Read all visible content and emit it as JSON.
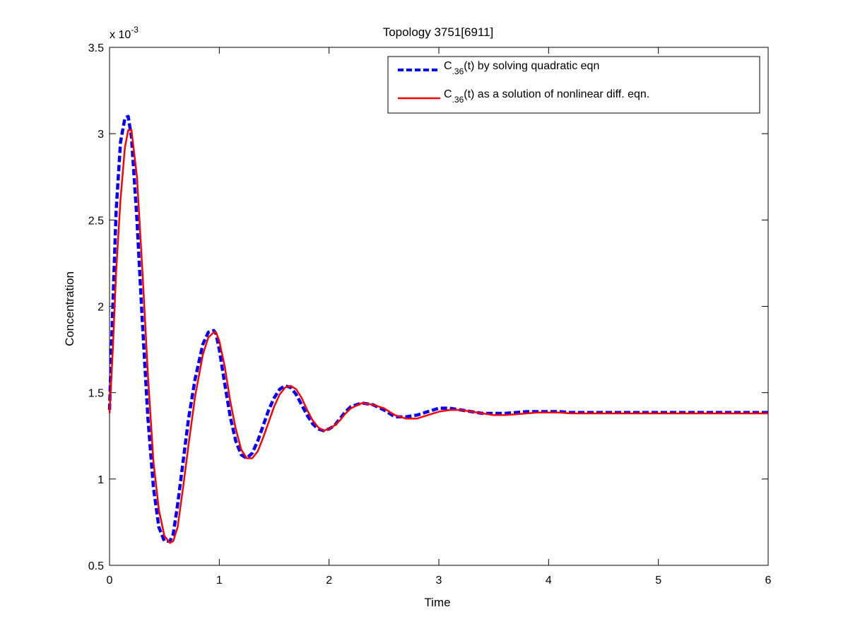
{
  "chart_data": {
    "type": "line",
    "title": "Topology 3751[6911]",
    "xlabel": "Time",
    "ylabel": "Concentration",
    "exponent_label": {
      "base": "x 10",
      "power": "-3"
    },
    "xlim": [
      0,
      6
    ],
    "ylim": [
      0.5,
      3.5
    ],
    "xticks": [
      0,
      1,
      2,
      3,
      4,
      5,
      6
    ],
    "yticks": [
      0.5,
      1,
      1.5,
      2,
      2.5,
      3,
      3.5
    ],
    "xtick_labels": [
      "0",
      "1",
      "2",
      "3",
      "4",
      "5",
      "6"
    ],
    "ytick_labels": [
      "0.5",
      "1",
      "1.5",
      "2",
      "2.5",
      "3",
      "3.5"
    ],
    "grid": false,
    "legend_position": "top-right",
    "series": [
      {
        "name_main": "C",
        "name_sub": ".36",
        "name_rest": "(t) by solving quadratic eqn",
        "color": "#0000ff",
        "style": "dashed",
        "x": [
          0,
          0.03,
          0.06,
          0.1,
          0.14,
          0.17,
          0.2,
          0.25,
          0.3,
          0.35,
          0.4,
          0.45,
          0.5,
          0.55,
          0.58,
          0.62,
          0.67,
          0.72,
          0.78,
          0.85,
          0.9,
          0.95,
          0.97,
          1.0,
          1.05,
          1.1,
          1.15,
          1.2,
          1.25,
          1.3,
          1.35,
          1.4,
          1.45,
          1.5,
          1.55,
          1.6,
          1.65,
          1.7,
          1.75,
          1.8,
          1.85,
          1.9,
          1.95,
          2.0,
          2.05,
          2.1,
          2.15,
          2.2,
          2.3,
          2.4,
          2.5,
          2.55,
          2.6,
          2.7,
          2.8,
          2.9,
          3.0,
          3.1,
          3.2,
          3.3,
          3.4,
          3.5,
          3.6,
          3.7,
          3.8,
          3.9,
          4.0,
          4.1,
          4.2,
          4.4,
          4.6,
          4.8,
          5.0,
          5.2,
          5.4,
          5.6,
          5.8,
          6.0
        ],
        "y": [
          1.4,
          2.0,
          2.55,
          2.95,
          3.09,
          3.1,
          2.98,
          2.5,
          1.9,
          1.35,
          0.95,
          0.72,
          0.64,
          0.64,
          0.68,
          0.85,
          1.1,
          1.35,
          1.58,
          1.78,
          1.85,
          1.86,
          1.84,
          1.75,
          1.55,
          1.36,
          1.22,
          1.14,
          1.12,
          1.15,
          1.22,
          1.31,
          1.4,
          1.47,
          1.52,
          1.54,
          1.53,
          1.49,
          1.43,
          1.37,
          1.32,
          1.29,
          1.28,
          1.29,
          1.31,
          1.35,
          1.39,
          1.42,
          1.44,
          1.43,
          1.4,
          1.38,
          1.36,
          1.36,
          1.37,
          1.39,
          1.41,
          1.41,
          1.4,
          1.39,
          1.38,
          1.38,
          1.38,
          1.385,
          1.39,
          1.39,
          1.39,
          1.39,
          1.385,
          1.385,
          1.385,
          1.385,
          1.385,
          1.385,
          1.385,
          1.385,
          1.385,
          1.385
        ]
      },
      {
        "name_main": "C",
        "name_sub": ".36",
        "name_rest": "(t) as a solution of nonlinear diff. eqn.",
        "color": "#ff0000",
        "style": "solid",
        "x": [
          0,
          0.03,
          0.06,
          0.1,
          0.14,
          0.17,
          0.2,
          0.25,
          0.3,
          0.35,
          0.4,
          0.45,
          0.5,
          0.55,
          0.58,
          0.62,
          0.67,
          0.72,
          0.78,
          0.85,
          0.9,
          0.95,
          0.97,
          1.0,
          1.05,
          1.1,
          1.15,
          1.2,
          1.25,
          1.3,
          1.35,
          1.4,
          1.45,
          1.5,
          1.55,
          1.6,
          1.65,
          1.7,
          1.75,
          1.8,
          1.85,
          1.9,
          1.95,
          2.0,
          2.05,
          2.1,
          2.15,
          2.2,
          2.3,
          2.4,
          2.5,
          2.55,
          2.6,
          2.7,
          2.8,
          2.9,
          3.0,
          3.1,
          3.2,
          3.3,
          3.4,
          3.5,
          3.6,
          3.7,
          3.8,
          3.9,
          4.0,
          4.1,
          4.2,
          4.4,
          4.6,
          4.8,
          5.0,
          5.2,
          5.4,
          5.6,
          5.8,
          6.0
        ],
        "y": [
          1.38,
          1.75,
          2.2,
          2.62,
          2.92,
          3.02,
          3.02,
          2.75,
          2.2,
          1.6,
          1.1,
          0.82,
          0.67,
          0.63,
          0.64,
          0.72,
          0.95,
          1.2,
          1.48,
          1.72,
          1.82,
          1.85,
          1.85,
          1.8,
          1.65,
          1.45,
          1.29,
          1.17,
          1.12,
          1.12,
          1.16,
          1.24,
          1.33,
          1.42,
          1.49,
          1.53,
          1.54,
          1.52,
          1.47,
          1.4,
          1.34,
          1.3,
          1.28,
          1.29,
          1.31,
          1.34,
          1.38,
          1.41,
          1.44,
          1.43,
          1.41,
          1.39,
          1.37,
          1.35,
          1.35,
          1.37,
          1.39,
          1.4,
          1.4,
          1.39,
          1.38,
          1.37,
          1.37,
          1.375,
          1.38,
          1.385,
          1.385,
          1.385,
          1.38,
          1.38,
          1.38,
          1.38,
          1.38,
          1.38,
          1.38,
          1.38,
          1.38,
          1.38
        ]
      }
    ]
  }
}
